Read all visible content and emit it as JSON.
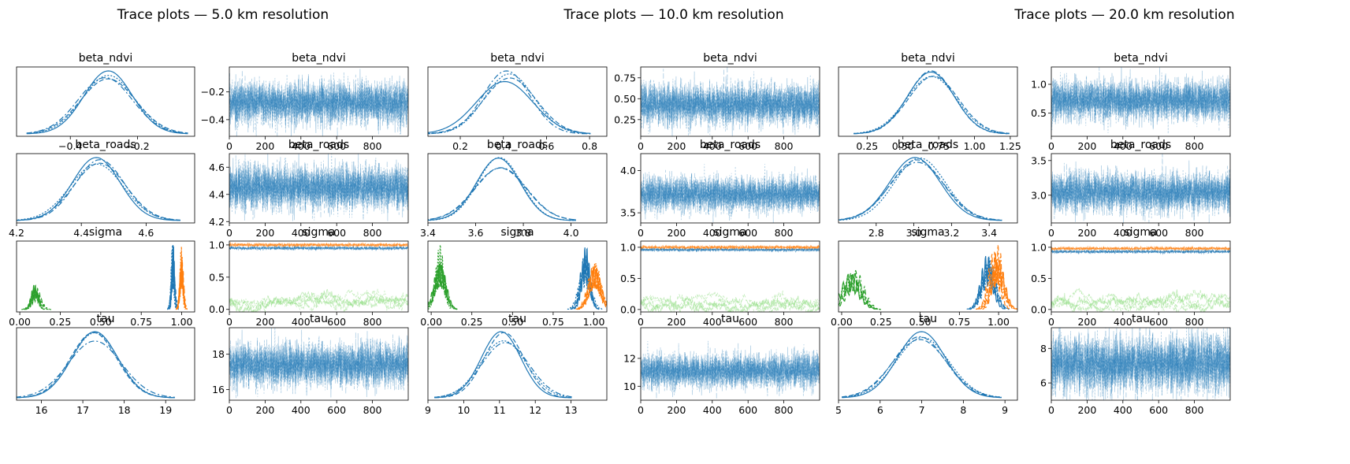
{
  "figure_titles": [
    "Trace plots — 5.0 km resolution",
    "Trace plots — 10.0 km resolution",
    "Trace plots — 20.0 km resolution"
  ],
  "colors": {
    "c0": "#1f77b4",
    "c1": "#ff7f0e",
    "c2": "#2ca02c",
    "c2light": "#98df8a",
    "c0light": "#6fa8dc"
  },
  "chart_data": [
    {
      "type": "line",
      "resolution": "5.0 km",
      "panels": [
        {
          "kind": "density",
          "title": "beta_ndvi",
          "xticks": [
            "−0.4",
            "−0.2"
          ],
          "xlim": [
            -0.56,
            -0.03
          ],
          "peak": -0.29,
          "sd": 0.075
        },
        {
          "kind": "trace",
          "title": "beta_ndvi",
          "xticks": [
            "0",
            "200",
            "400",
            "600",
            "800"
          ],
          "yticks": [
            "−0.2",
            "−0.4"
          ],
          "ytick_values": [
            -0.2,
            -0.4
          ],
          "ylim": [
            -0.52,
            -0.02
          ],
          "mean": -0.28,
          "sd": 0.075
        },
        {
          "kind": "density",
          "title": "beta_roads",
          "xticks": [
            "4.2",
            "4.4",
            "4.6"
          ],
          "xlim": [
            4.2,
            4.75
          ],
          "peak": 4.45,
          "sd": 0.08
        },
        {
          "kind": "trace",
          "title": "beta_roads",
          "xticks": [
            "0",
            "200",
            "400",
            "600",
            "800"
          ],
          "yticks": [
            "4.6",
            "4.4",
            "4.2"
          ],
          "ytick_values": [
            4.6,
            4.4,
            4.2
          ],
          "ylim": [
            4.19,
            4.7
          ],
          "mean": 4.45,
          "sd": 0.08
        },
        {
          "kind": "density",
          "title": "sigma",
          "xticks": [
            "0.00",
            "0.25",
            "0.50",
            "0.75",
            "1.00"
          ],
          "xlim": [
            -0.02,
            1.08
          ],
          "components": [
            {
              "color": "c2",
              "center": 0.1,
              "sd": 0.025
            },
            {
              "color": "c0",
              "center": 0.945,
              "sd": 0.01
            },
            {
              "color": "c1",
              "center": 1.0,
              "sd": 0.01
            }
          ]
        },
        {
          "kind": "trace_sigma",
          "title": "sigma",
          "xticks": [
            "0",
            "200",
            "400",
            "600",
            "800"
          ],
          "yticks": [
            "1.0",
            "0.5",
            "0.0"
          ],
          "ytick_values": [
            1.0,
            0.5,
            0.0
          ],
          "ylim": [
            -0.04,
            1.06
          ],
          "levels": [
            0.95,
            1.0,
            0.12
          ]
        },
        {
          "kind": "density",
          "title": "tau",
          "xticks": [
            "16",
            "17",
            "18",
            "19"
          ],
          "xlim": [
            15.4,
            19.7
          ],
          "peak": 17.3,
          "sd": 0.6
        },
        {
          "kind": "trace",
          "title": "tau",
          "xticks": [
            "0",
            "200",
            "400",
            "600",
            "800"
          ],
          "yticks": [
            "18",
            "16"
          ],
          "ytick_values": [
            18,
            16
          ],
          "ylim": [
            15.4,
            19.5
          ],
          "mean": 17.4,
          "sd": 0.6
        }
      ]
    },
    {
      "type": "line",
      "resolution": "10.0 km",
      "panels": [
        {
          "kind": "density",
          "title": "beta_ndvi",
          "xticks": [
            "0.2",
            "0.4",
            "0.6",
            "0.8"
          ],
          "xlim": [
            0.05,
            0.88
          ],
          "peak": 0.42,
          "sd": 0.12
        },
        {
          "kind": "trace",
          "title": "beta_ndvi",
          "xticks": [
            "0",
            "200",
            "400",
            "600",
            "800"
          ],
          "yticks": [
            "0.75",
            "0.50",
            "0.25"
          ],
          "ytick_values": [
            0.75,
            0.5,
            0.25
          ],
          "ylim": [
            0.05,
            0.88
          ],
          "mean": 0.43,
          "sd": 0.12
        },
        {
          "kind": "density",
          "title": "beta_roads",
          "xticks": [
            "3.4",
            "3.6",
            "3.8",
            "4.0"
          ],
          "xlim": [
            3.4,
            4.15
          ],
          "peak": 3.7,
          "sd": 0.1
        },
        {
          "kind": "trace",
          "title": "beta_roads",
          "xticks": [
            "0",
            "200",
            "400",
            "600",
            "800"
          ],
          "yticks": [
            "4.0",
            "3.5"
          ],
          "ytick_values": [
            4.0,
            3.5
          ],
          "ylim": [
            3.38,
            4.2
          ],
          "mean": 3.72,
          "sd": 0.1
        },
        {
          "kind": "density",
          "title": "sigma",
          "xticks": [
            "0.00",
            "0.25",
            "0.50",
            "0.75",
            "1.00"
          ],
          "xlim": [
            -0.02,
            1.08
          ],
          "components": [
            {
              "color": "c2",
              "center": 0.05,
              "sd": 0.03
            },
            {
              "color": "c0",
              "center": 0.95,
              "sd": 0.03
            },
            {
              "color": "c1",
              "center": 1.0,
              "sd": 0.03
            }
          ]
        },
        {
          "kind": "trace_sigma",
          "title": "sigma",
          "xticks": [
            "0",
            "200",
            "400",
            "600",
            "800"
          ],
          "yticks": [
            "1.0",
            "0.5",
            "0.0"
          ],
          "ytick_values": [
            1.0,
            0.5,
            0.0
          ],
          "ylim": [
            -0.04,
            1.1
          ],
          "levels": [
            0.96,
            1.0,
            0.08
          ]
        },
        {
          "kind": "density",
          "title": "tau",
          "xticks": [
            "9",
            "10",
            "11",
            "12",
            "13"
          ],
          "xlim": [
            9.0,
            14.0
          ],
          "peak": 11.1,
          "sd": 0.6
        },
        {
          "kind": "trace",
          "title": "tau",
          "xticks": [
            "0",
            "200",
            "400",
            "600",
            "800"
          ],
          "yticks": [
            "12",
            "10"
          ],
          "ytick_values": [
            12,
            10
          ],
          "ylim": [
            9.0,
            14.2
          ],
          "mean": 11.1,
          "sd": 0.6
        }
      ]
    },
    {
      "type": "line",
      "resolution": "20.0 km",
      "panels": [
        {
          "kind": "density",
          "title": "beta_ndvi",
          "xticks": [
            "0.25",
            "0.50",
            "0.75",
            "1.00",
            "1.25"
          ],
          "xlim": [
            0.05,
            1.3
          ],
          "peak": 0.7,
          "sd": 0.17
        },
        {
          "kind": "trace",
          "title": "beta_ndvi",
          "xticks": [
            "0",
            "200",
            "400",
            "600",
            "800"
          ],
          "yticks": [
            "1.0",
            "0.5"
          ],
          "ytick_values": [
            1.0,
            0.5
          ],
          "ylim": [
            0.1,
            1.3
          ],
          "mean": 0.72,
          "sd": 0.17
        },
        {
          "kind": "density",
          "title": "beta_roads",
          "xticks": [
            "2.8",
            "3.0",
            "3.2",
            "3.4"
          ],
          "xlim": [
            2.6,
            3.55
          ],
          "peak": 3.02,
          "sd": 0.14
        },
        {
          "kind": "trace",
          "title": "beta_roads",
          "xticks": [
            "0",
            "200",
            "400",
            "600",
            "800"
          ],
          "yticks": [
            "3.5",
            "3.0"
          ],
          "ytick_values": [
            3.5,
            3.0
          ],
          "ylim": [
            2.6,
            3.6
          ],
          "mean": 3.04,
          "sd": 0.14
        },
        {
          "kind": "density",
          "title": "sigma",
          "xticks": [
            "0.00",
            "0.25",
            "0.50",
            "0.75",
            "1.00"
          ],
          "xlim": [
            -0.02,
            1.12
          ],
          "components": [
            {
              "color": "c2",
              "center": 0.07,
              "sd": 0.05
            },
            {
              "color": "c0",
              "center": 0.93,
              "sd": 0.04
            },
            {
              "color": "c1",
              "center": 0.98,
              "sd": 0.04
            }
          ]
        },
        {
          "kind": "trace_sigma",
          "title": "sigma",
          "xticks": [
            "0",
            "200",
            "400",
            "600",
            "800"
          ],
          "yticks": [
            "1.0",
            "0.5",
            "0.0"
          ],
          "ytick_values": [
            1.0,
            0.5,
            0.0
          ],
          "ylim": [
            -0.04,
            1.1
          ],
          "levels": [
            0.93,
            0.98,
            0.1
          ]
        },
        {
          "kind": "density",
          "title": "tau",
          "xticks": [
            "5",
            "6",
            "7",
            "8",
            "9"
          ],
          "xlim": [
            5.0,
            9.3
          ],
          "peak": 7.0,
          "sd": 0.6
        },
        {
          "kind": "trace",
          "title": "tau",
          "xticks": [
            "0",
            "200",
            "400",
            "600",
            "800"
          ],
          "yticks": [
            "8",
            "6"
          ],
          "ytick_values": [
            8,
            6
          ],
          "ylim": [
            5.0,
            9.2
          ],
          "mean": 7.1,
          "sd": 0.8
        }
      ]
    }
  ]
}
